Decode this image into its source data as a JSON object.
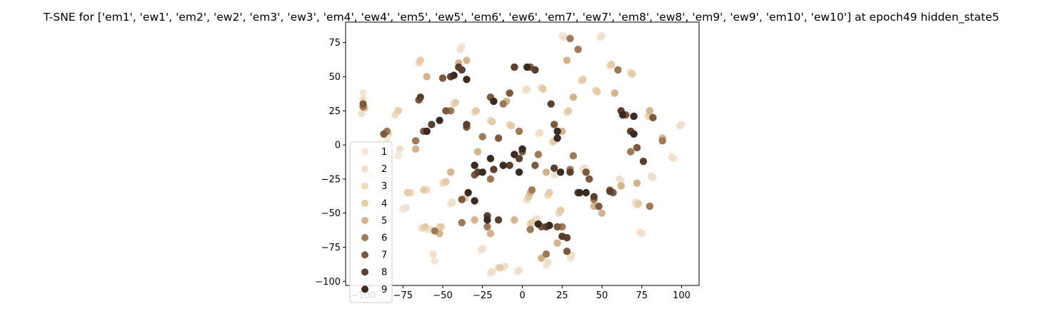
{
  "chart_data": {
    "type": "scatter",
    "title": "T-SNE for ['em1', 'ew1', 'em2', 'ew2', 'em3', 'ew3', 'em4', 'ew4', 'em5', 'ew5', 'em6', 'ew6', 'em7', 'ew7', 'em8', 'ew8', 'em9', 'ew9', 'em10', 'ew10'] at epoch49 hidden_state5",
    "xlabel": "",
    "ylabel": "",
    "xlim": [
      -111,
      111
    ],
    "ylim": [
      -103,
      90
    ],
    "xticks": [
      -100,
      -75,
      -50,
      -25,
      0,
      25,
      50,
      75,
      100
    ],
    "yticks": [
      -100,
      -75,
      -50,
      -25,
      0,
      25,
      50,
      75
    ],
    "grid": false,
    "legend_position": "lower-left",
    "series": [
      {
        "name": "1",
        "color": "#f3e6d8",
        "points": [
          [
            -100,
            38
          ],
          [
            -98,
            -20
          ],
          [
            -85,
            5
          ],
          [
            -78,
            -8
          ],
          [
            -75,
            -47
          ],
          [
            -60,
            -62
          ],
          [
            -55,
            -85
          ],
          [
            -38,
            72
          ],
          [
            -26,
            -77
          ],
          [
            -20,
            -94
          ],
          [
            -12,
            -90
          ],
          [
            -3,
            -93
          ],
          [
            2,
            40
          ],
          [
            10,
            8
          ],
          [
            15,
            -88
          ],
          [
            25,
            80
          ],
          [
            30,
            -83
          ],
          [
            38,
            -18
          ],
          [
            50,
            80
          ],
          [
            62,
            -26
          ],
          [
            72,
            -43
          ],
          [
            75,
            -65
          ],
          [
            82,
            -24
          ],
          [
            95,
            -10
          ],
          [
            100,
            15
          ],
          [
            -45,
            -43
          ],
          [
            8,
            -55
          ],
          [
            20,
            -22
          ]
        ]
      },
      {
        "name": "2",
        "color": "#efe0cd",
        "points": [
          [
            -101,
            23
          ],
          [
            -95,
            -22
          ],
          [
            -84,
            8
          ],
          [
            -77,
            -3
          ],
          [
            -73,
            -46
          ],
          [
            -58,
            -62
          ],
          [
            -56,
            -80
          ],
          [
            -39,
            70
          ],
          [
            -25,
            -76
          ],
          [
            -19,
            -93
          ],
          [
            -11,
            -89
          ],
          [
            -2,
            -92
          ],
          [
            3,
            41
          ],
          [
            11,
            9
          ],
          [
            16,
            -86
          ],
          [
            26,
            79
          ],
          [
            31,
            -81
          ],
          [
            39,
            -17
          ],
          [
            49,
            79
          ],
          [
            61,
            -25
          ],
          [
            71,
            -42
          ],
          [
            74,
            -64
          ],
          [
            81,
            -23
          ],
          [
            94,
            -9
          ],
          [
            99,
            14
          ],
          [
            -44,
            -42
          ],
          [
            9,
            -54
          ],
          [
            21,
            -21
          ]
        ]
      },
      {
        "name": "3",
        "color": "#efdcc0",
        "points": [
          [
            -100,
            33
          ],
          [
            -80,
            22
          ],
          [
            -70,
            -35
          ],
          [
            -65,
            60
          ],
          [
            -60,
            -33
          ],
          [
            -52,
            -60
          ],
          [
            -43,
            30
          ],
          [
            -30,
            24
          ],
          [
            -20,
            18
          ],
          [
            -8,
            15
          ],
          [
            3,
            -40
          ],
          [
            12,
            42
          ],
          [
            16,
            -37
          ],
          [
            19,
            2
          ],
          [
            28,
            24
          ],
          [
            37,
            47
          ],
          [
            46,
            40
          ],
          [
            55,
            58
          ],
          [
            68,
            53
          ],
          [
            72,
            -44
          ],
          [
            79,
            21
          ],
          [
            -63,
            -61
          ],
          [
            -50,
            -28
          ],
          [
            -38,
            -40
          ],
          [
            -15,
            -90
          ],
          [
            23,
            -50
          ],
          [
            5,
            -58
          ]
        ]
      },
      {
        "name": "4",
        "color": "#e4cba9",
        "points": [
          [
            -99,
            27
          ],
          [
            -78,
            25
          ],
          [
            -72,
            -35
          ],
          [
            -64,
            62
          ],
          [
            -62,
            -33
          ],
          [
            -51,
            -60
          ],
          [
            -42,
            31
          ],
          [
            -29,
            25
          ],
          [
            -19,
            17
          ],
          [
            -7,
            14
          ],
          [
            4,
            -38
          ],
          [
            13,
            41
          ],
          [
            17,
            -35
          ],
          [
            20,
            3
          ],
          [
            29,
            25
          ],
          [
            38,
            48
          ],
          [
            47,
            39
          ],
          [
            56,
            59
          ],
          [
            69,
            52
          ],
          [
            73,
            -43
          ],
          [
            80,
            22
          ],
          [
            -61,
            -60
          ],
          [
            -48,
            -27
          ],
          [
            -36,
            -39
          ],
          [
            -14,
            -90
          ],
          [
            24,
            -48
          ],
          [
            6,
            -57
          ]
        ]
      },
      {
        "name": "5",
        "color": "#d3b48e",
        "points": [
          [
            -60,
            50
          ],
          [
            -52,
            -65
          ],
          [
            -35,
            62
          ],
          [
            -30,
            -55
          ],
          [
            -20,
            -65
          ],
          [
            -5,
            -55
          ],
          [
            5,
            -35
          ],
          [
            12,
            -83
          ],
          [
            22,
            -72
          ],
          [
            28,
            62
          ],
          [
            32,
            35
          ],
          [
            45,
            -45
          ],
          [
            58,
            38
          ],
          [
            72,
            -28
          ],
          [
            80,
            25
          ],
          [
            88,
            5
          ],
          [
            -45,
            -20
          ],
          [
            15,
            -20
          ],
          [
            -28,
            -5
          ],
          [
            40,
            -20
          ],
          [
            62,
            -30
          ],
          [
            -10,
            32
          ],
          [
            25,
            10
          ],
          [
            -40,
            60
          ],
          [
            -67,
            -3
          ],
          [
            50,
            -50
          ]
        ]
      },
      {
        "name": "6",
        "color": "#9e7a58",
        "points": [
          [
            -100,
            28
          ],
          [
            -85,
            10
          ],
          [
            -67,
            3
          ],
          [
            -55,
            -63
          ],
          [
            -38,
            -57
          ],
          [
            -22,
            -60
          ],
          [
            -12,
            30
          ],
          [
            -2,
            10
          ],
          [
            6,
            -33
          ],
          [
            15,
            -80
          ],
          [
            25,
            -60
          ],
          [
            30,
            78
          ],
          [
            35,
            70
          ],
          [
            45,
            -40
          ],
          [
            60,
            55
          ],
          [
            68,
            -5
          ],
          [
            80,
            -45
          ],
          [
            88,
            3
          ],
          [
            32,
            -8
          ],
          [
            5,
            -62
          ],
          [
            -20,
            -25
          ],
          [
            -45,
            25
          ],
          [
            30,
            -18
          ],
          [
            55,
            -33
          ],
          [
            -25,
            6
          ],
          [
            10,
            -7
          ]
        ]
      },
      {
        "name": "7",
        "color": "#7a5a40",
        "points": [
          [
            -100,
            30
          ],
          [
            -87,
            8
          ],
          [
            -65,
            33
          ],
          [
            -62,
            10
          ],
          [
            -48,
            25
          ],
          [
            -38,
            -40
          ],
          [
            -35,
            13
          ],
          [
            -20,
            35
          ],
          [
            -15,
            5
          ],
          [
            -8,
            38
          ],
          [
            0,
            -5
          ],
          [
            8,
            -15
          ],
          [
            12,
            -60
          ],
          [
            22,
            -60
          ],
          [
            28,
            -78
          ],
          [
            40,
            -20
          ],
          [
            48,
            -45
          ],
          [
            57,
            -35
          ],
          [
            65,
            22
          ],
          [
            72,
            -2
          ],
          [
            82,
            20
          ],
          [
            20,
            15
          ],
          [
            -30,
            -22
          ],
          [
            -50,
            49
          ],
          [
            5,
            57
          ],
          [
            42,
            -25
          ]
        ]
      },
      {
        "name": "8",
        "color": "#5b4030",
        "points": [
          [
            -64,
            35
          ],
          [
            -57,
            15
          ],
          [
            -45,
            50
          ],
          [
            -40,
            57
          ],
          [
            -38,
            55
          ],
          [
            -28,
            -20
          ],
          [
            -22,
            -52
          ],
          [
            -18,
            -18
          ],
          [
            -15,
            -55
          ],
          [
            -8,
            -15
          ],
          [
            -2,
            -10
          ],
          [
            8,
            55
          ],
          [
            18,
            30
          ],
          [
            20,
            -17
          ],
          [
            28,
            -68
          ],
          [
            35,
            -35
          ],
          [
            45,
            -38
          ],
          [
            55,
            -34
          ],
          [
            62,
            25
          ],
          [
            68,
            10
          ],
          [
            76,
            -12
          ],
          [
            -5,
            57
          ],
          [
            15,
            -60
          ],
          [
            25,
            -67
          ],
          [
            -35,
            15
          ],
          [
            30,
            -20
          ]
        ]
      },
      {
        "name": "9",
        "color": "#3a2b24",
        "points": [
          [
            -60,
            10
          ],
          [
            -52,
            18
          ],
          [
            -43,
            51
          ],
          [
            -35,
            48
          ],
          [
            -30,
            -15
          ],
          [
            -30,
            -41
          ],
          [
            -25,
            -20
          ],
          [
            -22,
            -55
          ],
          [
            -18,
            32
          ],
          [
            -12,
            -15
          ],
          [
            -2,
            -20
          ],
          [
            0,
            -3
          ],
          [
            3,
            57
          ],
          [
            10,
            -58
          ],
          [
            17,
            -59
          ],
          [
            22,
            10
          ],
          [
            24,
            -20
          ],
          [
            36,
            -35
          ],
          [
            40,
            -35
          ],
          [
            63,
            22
          ],
          [
            70,
            21
          ],
          [
            70,
            8
          ],
          [
            -34,
            -35
          ],
          [
            22,
            5
          ],
          [
            -20,
            -10
          ],
          [
            -5,
            -7
          ]
        ]
      }
    ]
  }
}
